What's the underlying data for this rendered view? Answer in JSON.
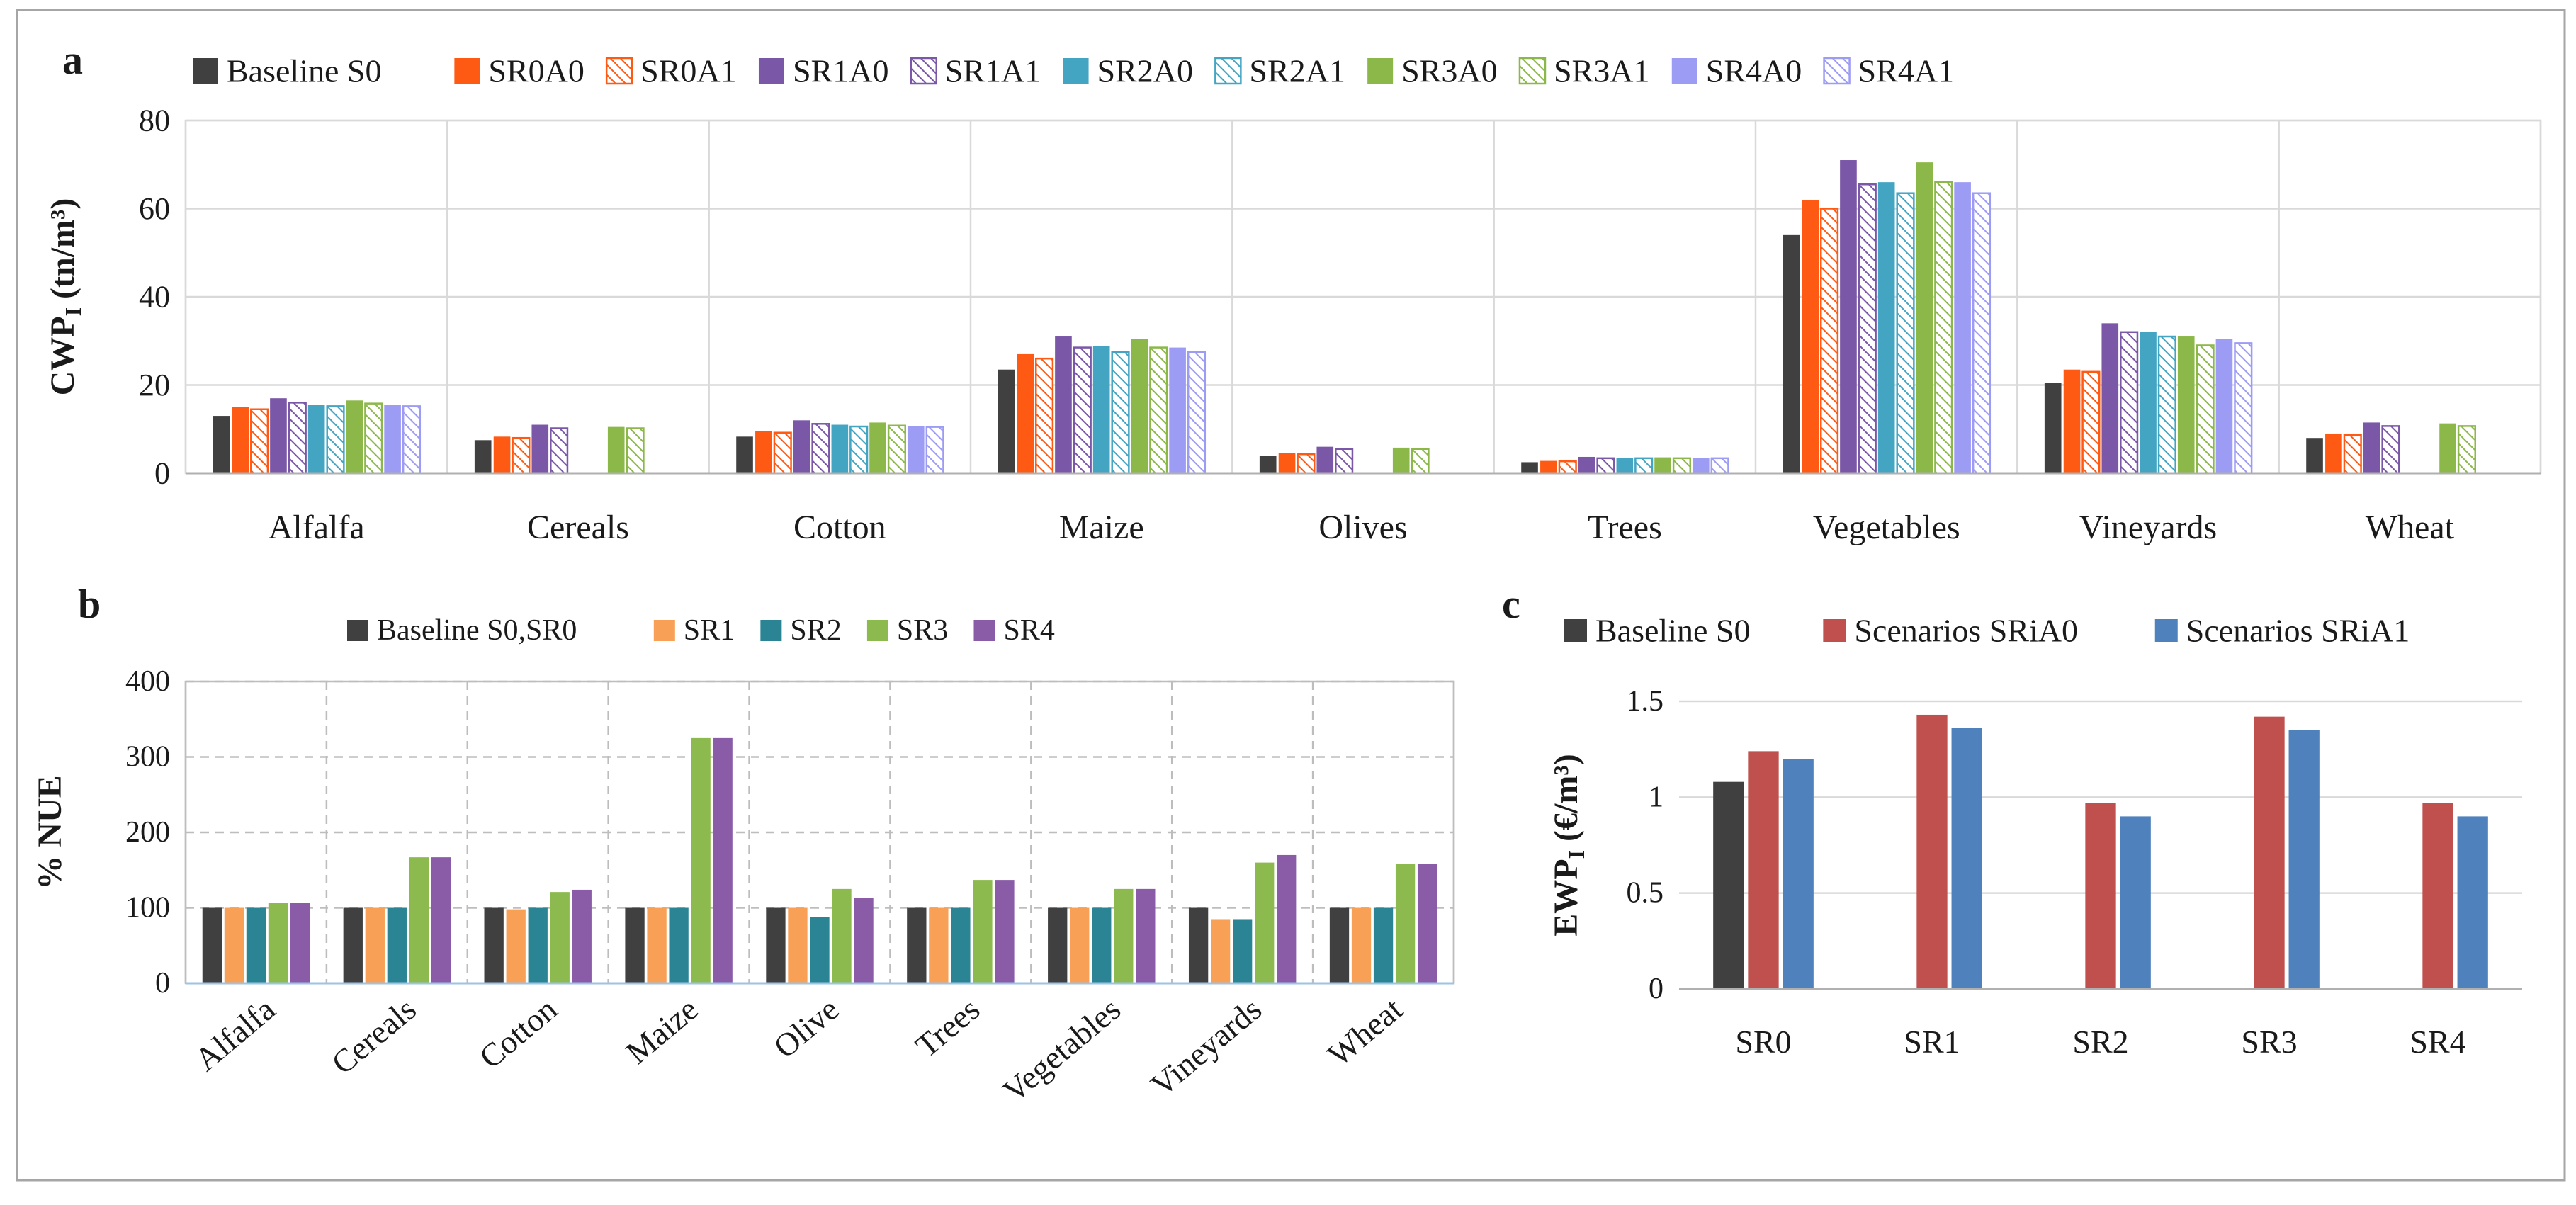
{
  "panel_labels": {
    "a": "a",
    "b": "b",
    "c": "c"
  },
  "colors": {
    "baseline": "#404040",
    "sr0": "#FF5A14",
    "sr1": "#7B57A8",
    "sr2": "#43A5C2",
    "sr3": "#8CB84A",
    "sr4": "#9D9CF5",
    "b_sr1": "#F7A056",
    "b_sr2": "#2B8494",
    "b_sr3": "#8DBA4E",
    "b_sr4": "#8A5CA8",
    "c_a0": "#C0504D",
    "c_a1": "#4F81BD",
    "grid": "#d0d0d0",
    "frame": "#999999"
  },
  "chart_data": [
    {
      "id": "a",
      "type": "bar",
      "title": "",
      "ylabel": "CWP",
      "ylabel_sub": "I",
      "ylabel_unit": " (tn/m³)",
      "xlabel": "",
      "ylim": [
        0,
        80
      ],
      "yticks": [
        "0",
        "20",
        "40",
        "60",
        "80"
      ],
      "grid": true,
      "legend_position": "top",
      "categories": [
        "Alfalfa",
        "Cereals",
        "Cotton",
        "Maize",
        "Olives",
        "Trees",
        "Vegetables",
        "Vineyards",
        "Wheat"
      ],
      "series": [
        {
          "name": "Baseline S0",
          "color": "#404040",
          "hatched": false,
          "values": [
            13,
            7.5,
            8.3,
            23.5,
            4,
            2.5,
            54,
            20.5,
            8
          ]
        },
        {
          "name": "SR0A0",
          "color": "#FF5A14",
          "hatched": false,
          "values": [
            15,
            8.3,
            9.5,
            27,
            4.5,
            2.8,
            62,
            23.5,
            9
          ]
        },
        {
          "name": "SR0A1",
          "color": "#FF5A14",
          "hatched": true,
          "values": [
            14.5,
            8,
            9.2,
            26,
            4.3,
            2.7,
            60,
            23,
            8.7
          ]
        },
        {
          "name": "SR1A0",
          "color": "#7B57A8",
          "hatched": false,
          "values": [
            17,
            11,
            12,
            31,
            6,
            3.7,
            71,
            34,
            11.5
          ]
        },
        {
          "name": "SR1A1",
          "color": "#7B57A8",
          "hatched": true,
          "values": [
            16,
            10.2,
            11.2,
            28.5,
            5.5,
            3.4,
            65.5,
            32,
            10.7
          ]
        },
        {
          "name": "SR2A0",
          "color": "#43A5C2",
          "hatched": false,
          "values": [
            15.5,
            0,
            11,
            28.8,
            0,
            3.5,
            66,
            32,
            0
          ]
        },
        {
          "name": "SR2A1",
          "color": "#43A5C2",
          "hatched": true,
          "values": [
            15.2,
            0,
            10.6,
            27.5,
            0,
            3.4,
            63.5,
            31,
            0
          ]
        },
        {
          "name": "SR3A0",
          "color": "#8CB84A",
          "hatched": false,
          "values": [
            16.5,
            10.5,
            11.5,
            30.5,
            5.8,
            3.6,
            70.5,
            31,
            11.3
          ]
        },
        {
          "name": "SR3A1",
          "color": "#8CB84A",
          "hatched": true,
          "values": [
            15.8,
            10.2,
            10.8,
            28.5,
            5.5,
            3.4,
            66,
            29,
            10.7
          ]
        },
        {
          "name": "SR4A0",
          "color": "#9D9CF5",
          "hatched": false,
          "values": [
            15.5,
            0,
            10.7,
            28.5,
            0,
            3.5,
            66,
            30.5,
            0
          ]
        },
        {
          "name": "SR4A1",
          "color": "#9D9CF5",
          "hatched": true,
          "values": [
            15.2,
            0,
            10.5,
            27.5,
            0,
            3.4,
            63.5,
            29.5,
            0
          ]
        }
      ]
    },
    {
      "id": "b",
      "type": "bar",
      "title": "",
      "ylabel": "% NUE",
      "xlabel": "",
      "ylim": [
        0,
        400
      ],
      "yticks": [
        "0",
        "100",
        "200",
        "300",
        "400"
      ],
      "grid": true,
      "legend_position": "top",
      "categories": [
        "Alfalfa",
        "Cereals",
        "Cotton",
        "Maize",
        "Olive",
        "Trees",
        "Vegetables",
        "Vineyards",
        "Wheat"
      ],
      "series": [
        {
          "name": "Baseline S0,SR0",
          "color": "#404040",
          "values": [
            100,
            100,
            100,
            100,
            100,
            100,
            100,
            100,
            100
          ]
        },
        {
          "name": "SR1",
          "color": "#F7A056",
          "values": [
            100,
            100,
            98,
            100,
            100,
            100,
            100,
            85,
            100
          ]
        },
        {
          "name": "SR2",
          "color": "#2B8494",
          "values": [
            100,
            100,
            100,
            100,
            88,
            100,
            100,
            85,
            100
          ]
        },
        {
          "name": "SR3",
          "color": "#8DBA4E",
          "values": [
            107,
            167,
            121,
            325,
            125,
            137,
            125,
            160,
            158
          ]
        },
        {
          "name": "SR4",
          "color": "#8A5CA8",
          "values": [
            107,
            167,
            124,
            325,
            113,
            137,
            125,
            170,
            158
          ]
        }
      ]
    },
    {
      "id": "c",
      "type": "bar",
      "title": "",
      "ylabel": "EWP",
      "ylabel_sub": "I",
      "ylabel_unit": " (€/m³)",
      "xlabel": "",
      "ylim": [
        0,
        1.5
      ],
      "yticks": [
        "0",
        "0.5",
        "1",
        "1.5"
      ],
      "grid": true,
      "legend_position": "top",
      "categories": [
        "SR0",
        "SR1",
        "SR2",
        "SR3",
        "SR4"
      ],
      "series": [
        {
          "name": "Baseline S0",
          "color": "#404040",
          "values": [
            1.08,
            0,
            0,
            0,
            0
          ]
        },
        {
          "name": "Scenarios SRiA0",
          "color": "#C0504D",
          "values": [
            1.24,
            1.43,
            0.97,
            1.42,
            0.97
          ]
        },
        {
          "name": "Scenarios SRiA1",
          "color": "#4F81BD",
          "values": [
            1.2,
            1.36,
            0.9,
            1.35,
            0.9
          ]
        }
      ]
    }
  ]
}
